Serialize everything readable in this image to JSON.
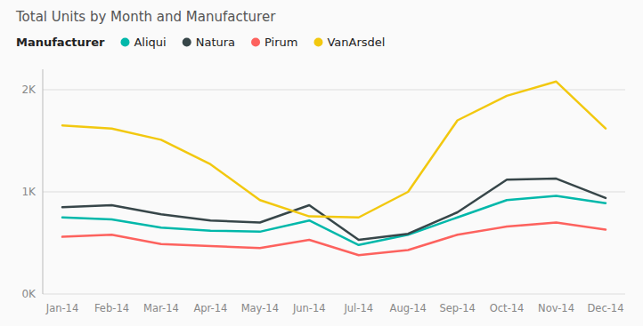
{
  "chart_data": {
    "type": "line",
    "title": "Total Units by Month and Manufacturer",
    "categories": [
      "Jan-14",
      "Feb-14",
      "Mar-14",
      "Apr-14",
      "May-14",
      "Jun-14",
      "Jul-14",
      "Aug-14",
      "Sep-14",
      "Oct-14",
      "Nov-14",
      "Dec-14"
    ],
    "series": [
      {
        "name": "Aliqui",
        "color": "#01B8AA",
        "values": [
          750,
          730,
          650,
          620,
          610,
          720,
          480,
          580,
          750,
          920,
          960,
          890
        ]
      },
      {
        "name": "Natura",
        "color": "#374649",
        "values": [
          850,
          870,
          780,
          720,
          700,
          870,
          530,
          590,
          800,
          1120,
          1130,
          940
        ]
      },
      {
        "name": "Pirum",
        "color": "#FD625E",
        "values": [
          560,
          580,
          490,
          470,
          450,
          530,
          380,
          430,
          580,
          660,
          700,
          630
        ]
      },
      {
        "name": "VanArsdel",
        "color": "#F2C80F",
        "values": [
          1650,
          1620,
          1510,
          1270,
          920,
          760,
          750,
          1000,
          1700,
          1940,
          2080,
          1620
        ]
      }
    ],
    "legend_title": "Manufacturer",
    "legend": "top left",
    "ylim": [
      0,
      2200
    ],
    "yticks": [
      {
        "value": 0,
        "label": "0K"
      },
      {
        "value": 1000,
        "label": "1K"
      },
      {
        "value": 2000,
        "label": "2K"
      }
    ],
    "grid": true
  }
}
